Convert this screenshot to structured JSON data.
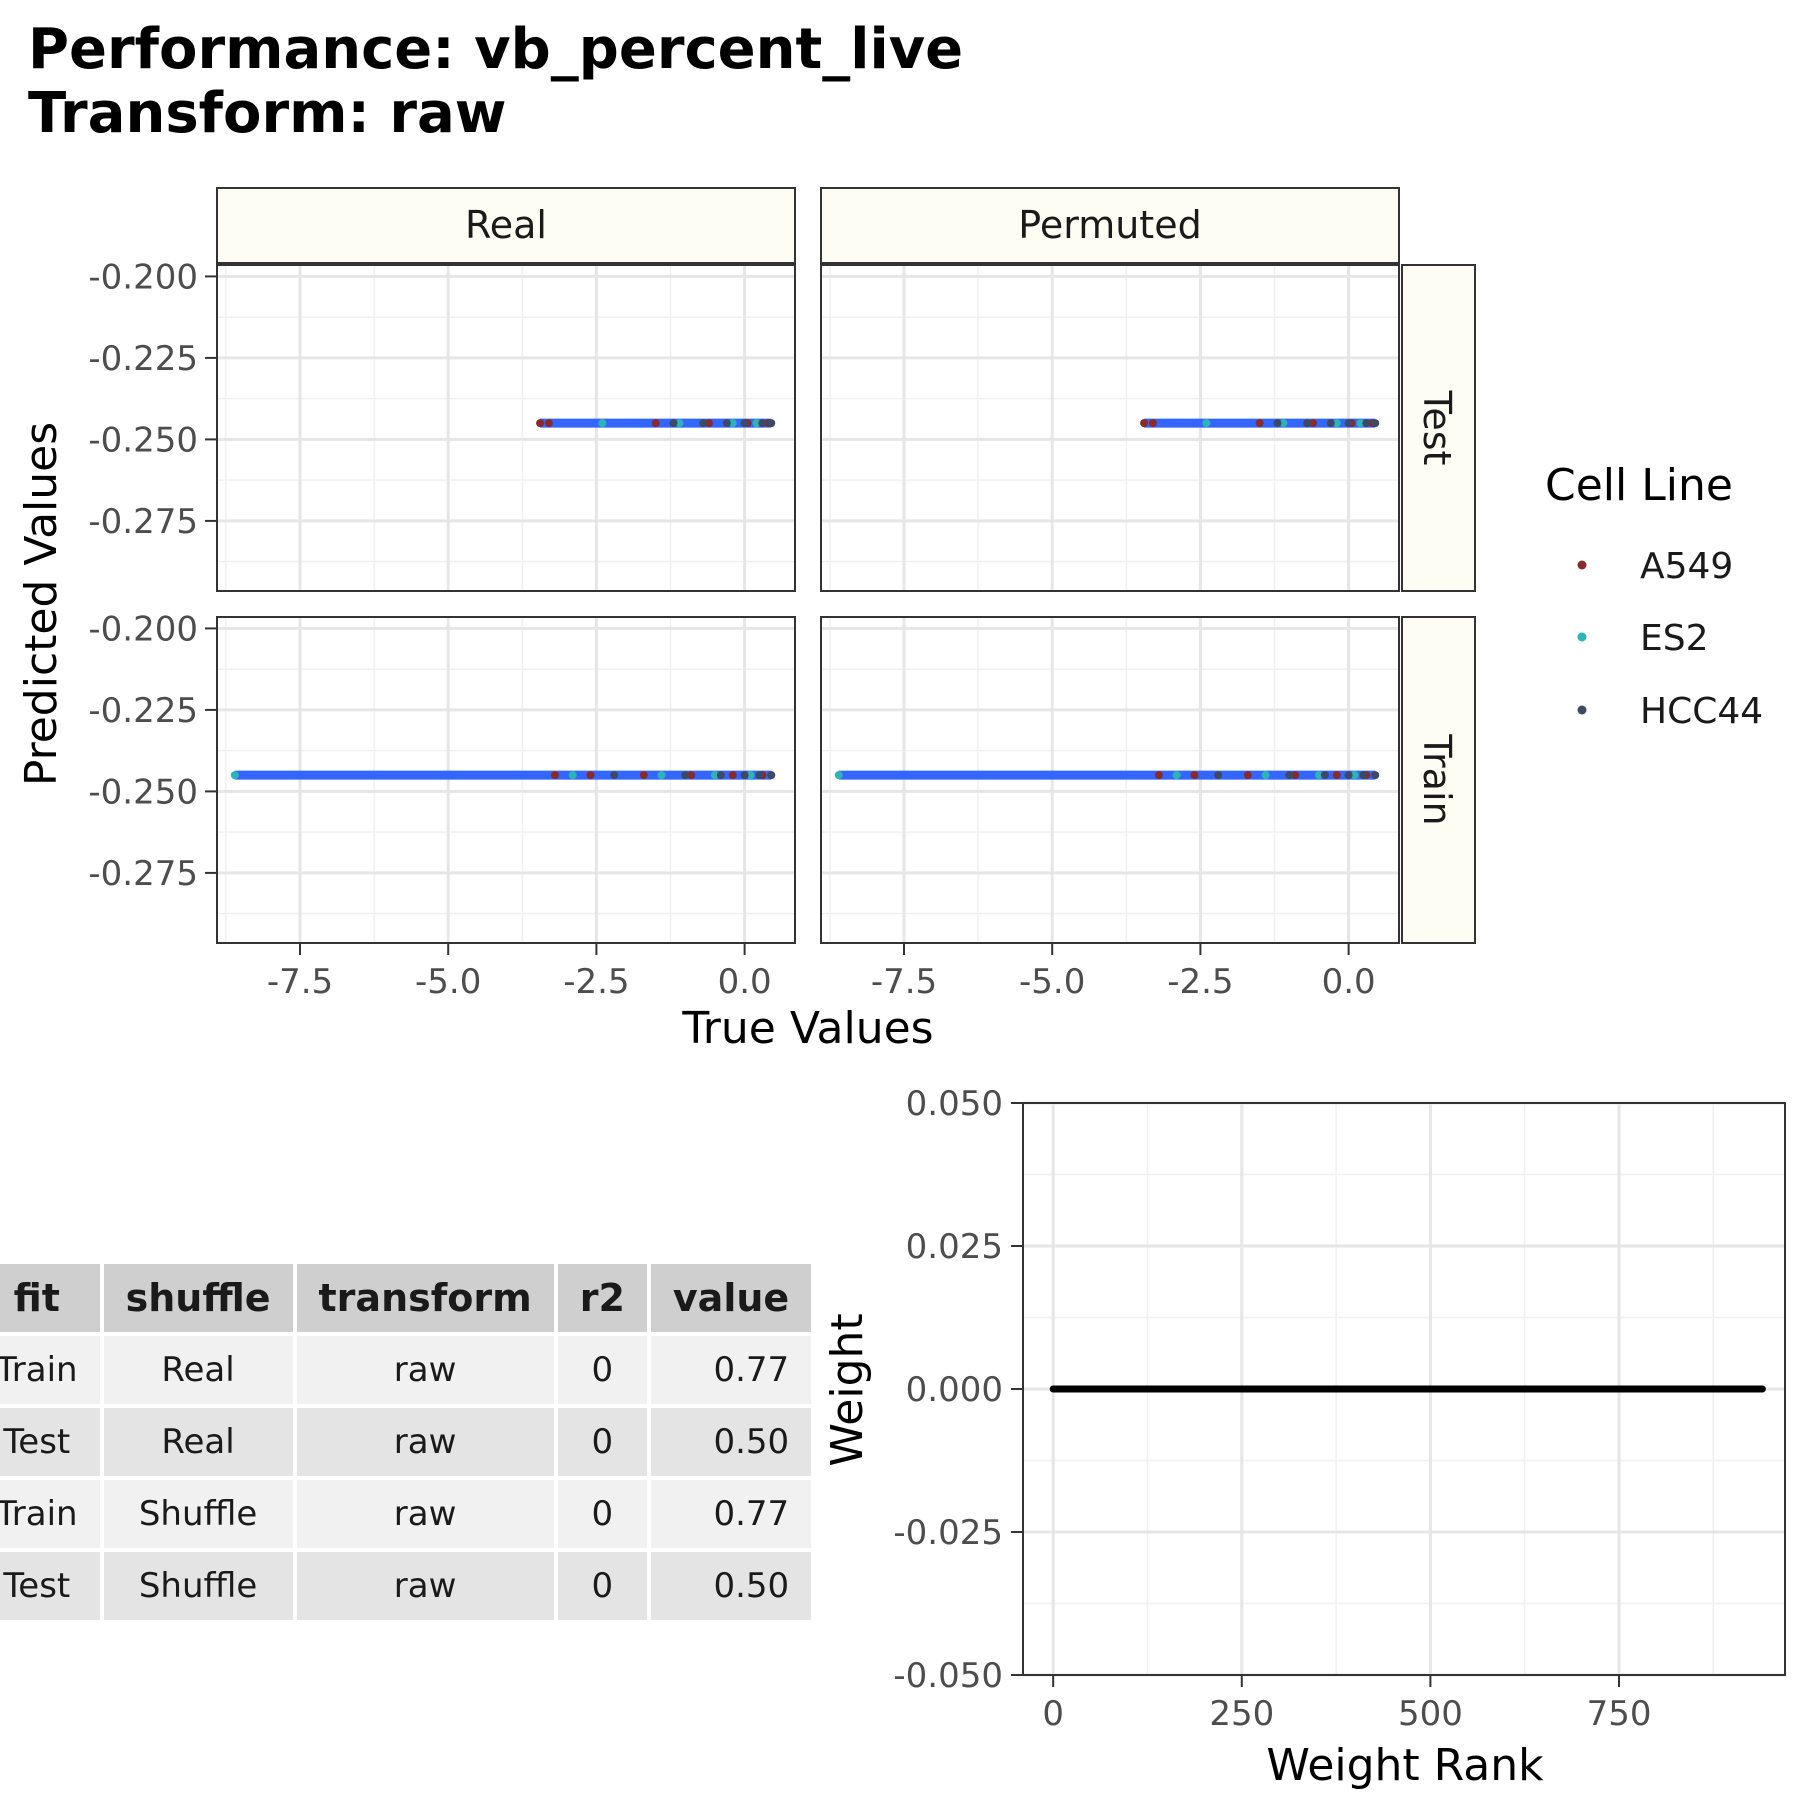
{
  "title": {
    "line1": "Performance: vb_percent_live",
    "line2": "Transform: raw"
  },
  "colors": {
    "A549": "#8b2a2a",
    "ES2": "#2bb5b5",
    "HCC44": "#3d4a66",
    "fit_line": "#3366ff",
    "strip_fill": "#fdfdf3"
  },
  "chart_data": [
    {
      "type": "scatter",
      "name": "facet-scatter",
      "xlabel": "True Values",
      "ylabel": "Predicted Values",
      "column_facets": [
        "Real",
        "Permuted"
      ],
      "row_facets": [
        "Test",
        "Train"
      ],
      "xlim": [
        -8.9,
        0.85
      ],
      "ylim": [
        -0.2965,
        -0.1965
      ],
      "x_ticks": [
        -7.5,
        -5.0,
        -2.5,
        0.0
      ],
      "x_tick_labels": [
        "-7.5",
        "-5.0",
        "-2.5",
        "0.0"
      ],
      "y_ticks": [
        -0.2,
        -0.225,
        -0.25,
        -0.275
      ],
      "y_tick_labels": [
        "-0.200",
        "-0.225",
        "-0.250",
        "-0.275"
      ],
      "grid": true,
      "legend": {
        "title": "Cell Line",
        "position": "right",
        "entries": [
          "A549",
          "ES2",
          "HCC44"
        ]
      },
      "panels": [
        {
          "col": "Real",
          "row": "Test",
          "fit_line": {
            "x": [
              -3.45,
              0.45
            ],
            "y": [
              -0.245,
              -0.245
            ]
          },
          "series": [
            {
              "name": "A549",
              "x": [
                -3.45,
                -3.3,
                -1.5,
                -0.6,
                0.05,
                0.4
              ],
              "y": [
                -0.245,
                -0.245,
                -0.245,
                -0.245,
                -0.245,
                -0.245
              ]
            },
            {
              "name": "ES2",
              "x": [
                -2.4,
                -1.1,
                -0.2,
                0.2
              ],
              "y": [
                -0.245,
                -0.245,
                -0.245,
                -0.245
              ]
            },
            {
              "name": "HCC44",
              "x": [
                -1.2,
                -0.7,
                -0.3,
                0.0,
                0.3,
                0.45
              ],
              "y": [
                -0.245,
                -0.245,
                -0.245,
                -0.245,
                -0.245,
                -0.245
              ]
            }
          ]
        },
        {
          "col": "Permuted",
          "row": "Test",
          "fit_line": {
            "x": [
              -3.45,
              0.45
            ],
            "y": [
              -0.245,
              -0.245
            ]
          },
          "series": [
            {
              "name": "A549",
              "x": [
                -3.45,
                -3.3,
                -1.5,
                -0.6,
                0.05,
                0.4
              ],
              "y": [
                -0.245,
                -0.245,
                -0.245,
                -0.245,
                -0.245,
                -0.245
              ]
            },
            {
              "name": "ES2",
              "x": [
                -2.4,
                -1.1,
                -0.2,
                0.2
              ],
              "y": [
                -0.245,
                -0.245,
                -0.245,
                -0.245
              ]
            },
            {
              "name": "HCC44",
              "x": [
                -1.2,
                -0.7,
                -0.3,
                0.0,
                0.3,
                0.45
              ],
              "y": [
                -0.245,
                -0.245,
                -0.245,
                -0.245,
                -0.245,
                -0.245
              ]
            }
          ]
        },
        {
          "col": "Real",
          "row": "Train",
          "fit_line": {
            "x": [
              -8.6,
              0.45
            ],
            "y": [
              -0.245,
              -0.245
            ]
          },
          "series": [
            {
              "name": "A549",
              "x": [
                -3.2,
                -2.6,
                -1.7,
                -0.9,
                -0.2,
                0.3
              ],
              "y": [
                -0.245,
                -0.245,
                -0.245,
                -0.245,
                -0.245,
                -0.245
              ]
            },
            {
              "name": "ES2",
              "x": [
                -8.6,
                -2.9,
                -1.4,
                -0.5,
                0.1
              ],
              "y": [
                -0.245,
                -0.245,
                -0.245,
                -0.245,
                -0.245
              ]
            },
            {
              "name": "HCC44",
              "x": [
                -2.2,
                -1.0,
                -0.4,
                0.0,
                0.25,
                0.45
              ],
              "y": [
                -0.245,
                -0.245,
                -0.245,
                -0.245,
                -0.245,
                -0.245
              ]
            }
          ]
        },
        {
          "col": "Permuted",
          "row": "Train",
          "fit_line": {
            "x": [
              -8.6,
              0.45
            ],
            "y": [
              -0.245,
              -0.245
            ]
          },
          "series": [
            {
              "name": "A549",
              "x": [
                -3.2,
                -2.6,
                -1.7,
                -0.9,
                -0.2,
                0.3
              ],
              "y": [
                -0.245,
                -0.245,
                -0.245,
                -0.245,
                -0.245,
                -0.245
              ]
            },
            {
              "name": "ES2",
              "x": [
                -8.6,
                -2.9,
                -1.4,
                -0.5,
                0.1
              ],
              "y": [
                -0.245,
                -0.245,
                -0.245,
                -0.245,
                -0.245
              ]
            },
            {
              "name": "HCC44",
              "x": [
                -2.2,
                -1.0,
                -0.4,
                0.0,
                0.25,
                0.45
              ],
              "y": [
                -0.245,
                -0.245,
                -0.245,
                -0.245,
                -0.245,
                -0.245
              ]
            }
          ]
        }
      ]
    },
    {
      "type": "table",
      "name": "performance-table",
      "columns": [
        "fit",
        "shuffle",
        "transform",
        "r2",
        "value"
      ],
      "rows": [
        [
          "Train",
          "Real",
          "raw",
          "0",
          "0.77"
        ],
        [
          "Test",
          "Real",
          "raw",
          "0",
          "0.50"
        ],
        [
          "Train",
          "Shuffle",
          "raw",
          "0",
          "0.77"
        ],
        [
          "Test",
          "Shuffle",
          "raw",
          "0",
          "0.50"
        ]
      ]
    },
    {
      "type": "line",
      "name": "weight-plot",
      "xlabel": "Weight Rank",
      "ylabel": "Weight",
      "xlim": [
        -40,
        970
      ],
      "ylim": [
        -0.05,
        0.05
      ],
      "x_ticks": [
        0,
        250,
        500,
        750
      ],
      "x_tick_labels": [
        "0",
        "250",
        "500",
        "750"
      ],
      "y_ticks": [
        0.05,
        0.025,
        0.0,
        -0.025,
        -0.05
      ],
      "y_tick_labels": [
        "0.050",
        "0.025",
        "0.000",
        "-0.025",
        "-0.050"
      ],
      "grid": true,
      "x": [
        0,
        940
      ],
      "y": [
        0.0,
        0.0
      ]
    }
  ]
}
